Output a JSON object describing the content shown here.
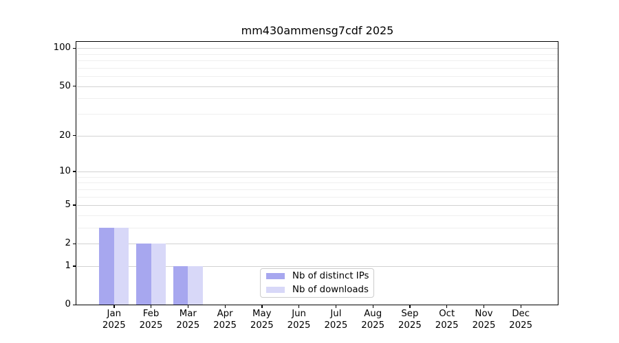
{
  "chart_data": {
    "type": "bar",
    "title": "mm430ammensg7cdf 2025",
    "categories": [
      "Jan",
      "Feb",
      "Mar",
      "Apr",
      "May",
      "Jun",
      "Jul",
      "Aug",
      "Sep",
      "Oct",
      "Nov",
      "Dec"
    ],
    "category_year": "2025",
    "series": [
      {
        "name": "Nb of distinct IPs",
        "color": "#a7a7ef",
        "values": [
          3,
          2,
          1,
          0,
          0,
          0,
          0,
          0,
          0,
          0,
          0,
          0
        ]
      },
      {
        "name": "Nb of downloads",
        "color": "#d8d8f8",
        "values": [
          3,
          2,
          1,
          0,
          0,
          0,
          0,
          0,
          0,
          0,
          0,
          0
        ]
      }
    ],
    "xlabel": "",
    "ylabel": "",
    "y_scale": "log10(1+x)",
    "y_axis_max": 111,
    "ylim": [
      0,
      111
    ],
    "y_major_ticks": [
      0,
      1,
      2,
      5,
      10,
      20,
      50,
      100
    ],
    "y_minor_ticks": [
      3,
      4,
      6,
      7,
      8,
      9,
      30,
      40,
      60,
      70,
      80,
      90
    ],
    "grid": "horizontal-major-and-minor",
    "legend_position": "inside-lower-center",
    "bar_group_width_fraction": 0.8
  }
}
